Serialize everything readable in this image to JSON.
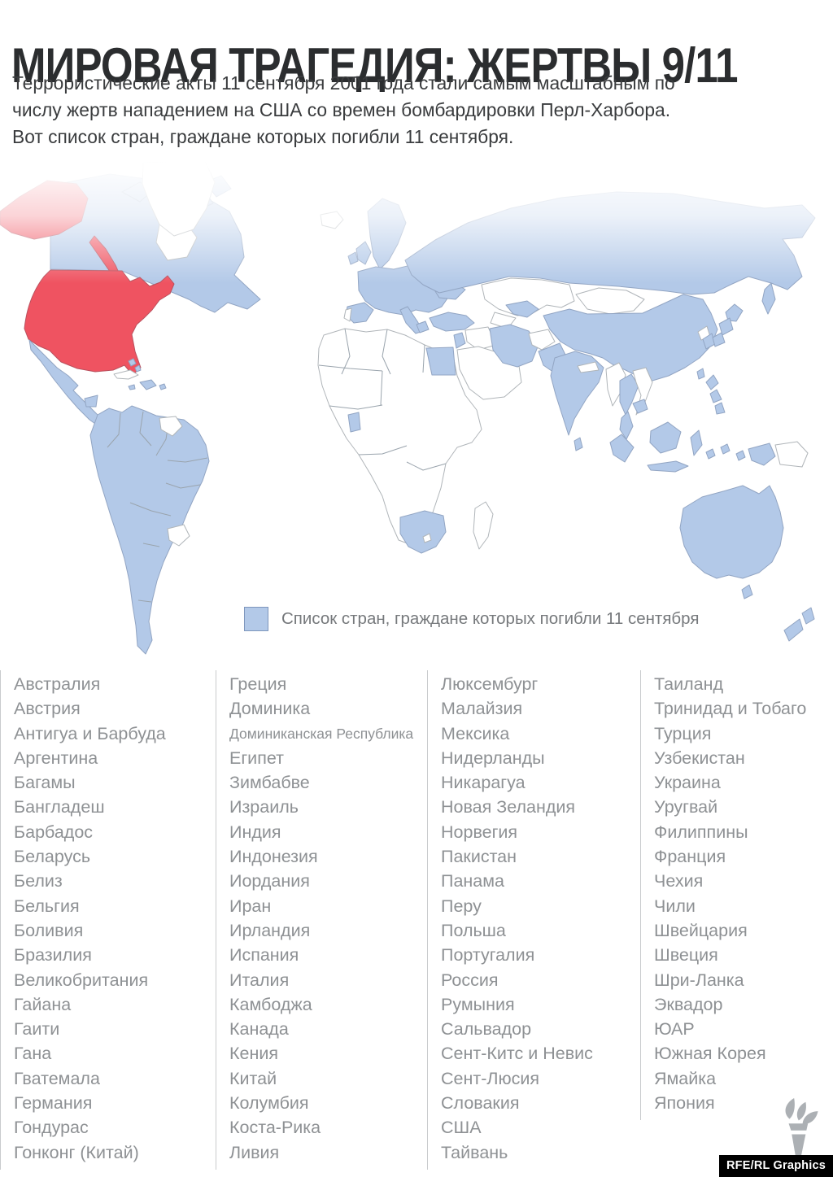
{
  "header": {
    "title": "МИРОВАЯ ТРАГЕДИЯ: ЖЕРТВЫ 9/11",
    "subtitle_lines": [
      "Террористические акты 11 сентября 2001 года стали самым масштабным по",
      "числу жертв нападением на США со времен бомбардировки Перл-Харбора.",
      "Вот список стран, граждане которых погибли 11 сентября."
    ]
  },
  "map": {
    "legend_label": "Список стран, граждане которых погибли 11 сентября"
  },
  "colors": {
    "map_blue": "#b3c9e8",
    "usa_red": "#ef5361",
    "border_gray": "#9aa4ad",
    "text_gray": "#8e9194",
    "title_dark": "#2b2d2f"
  },
  "countries": {
    "columns": [
      [
        "Австралия",
        "Австрия",
        "Антигуа и Барбуда",
        "Аргентина",
        "Багамы",
        "Бангладеш",
        "Барбадос",
        "Беларусь",
        "Белиз",
        "Бельгия",
        "Боливия",
        "Бразилия",
        "Великобритания",
        "Гайана",
        "Гаити",
        "Гана",
        "Гватемала",
        "Германия",
        "Гондурас",
        "Гонконг (Китай)"
      ],
      [
        "Греция",
        "Доминика",
        "Доминиканская Республика",
        "Египет",
        "Зимбабве",
        "Израиль",
        "Индия",
        "Индонезия",
        "Иордания",
        "Иран",
        "Ирландия",
        "Испания",
        "Италия",
        "Камбоджа",
        "Канада",
        "Кения",
        "Китай",
        "Колумбия",
        "Коста-Рика",
        "Ливия"
      ],
      [
        "Люксембург",
        "Малайзия",
        "Мексика",
        "Нидерланды",
        "Никарагуа",
        "Новая Зеландия",
        "Норвегия",
        "Пакистан",
        "Панама",
        "Перу",
        "Польша",
        "Португалия",
        "Россия",
        "Румыния",
        "Сальвадор",
        "Сент-Китс и Невис",
        "Сент-Люсия",
        "Словакия",
        "США",
        "Тайвань"
      ],
      [
        "Таиланд",
        "Тринидад и Тобаго",
        "Турция",
        "Узбекистан",
        "Украина",
        "Уругвай",
        "Филиппины",
        "Франция",
        "Чехия",
        "Чили",
        "Швейцария",
        "Швеция",
        "Шри-Ланка",
        "Эквадор",
        "ЮАР",
        "Южная Корея",
        "Ямайка",
        "Япония"
      ]
    ]
  },
  "footer": {
    "credit": "RFE/RL Graphics"
  }
}
